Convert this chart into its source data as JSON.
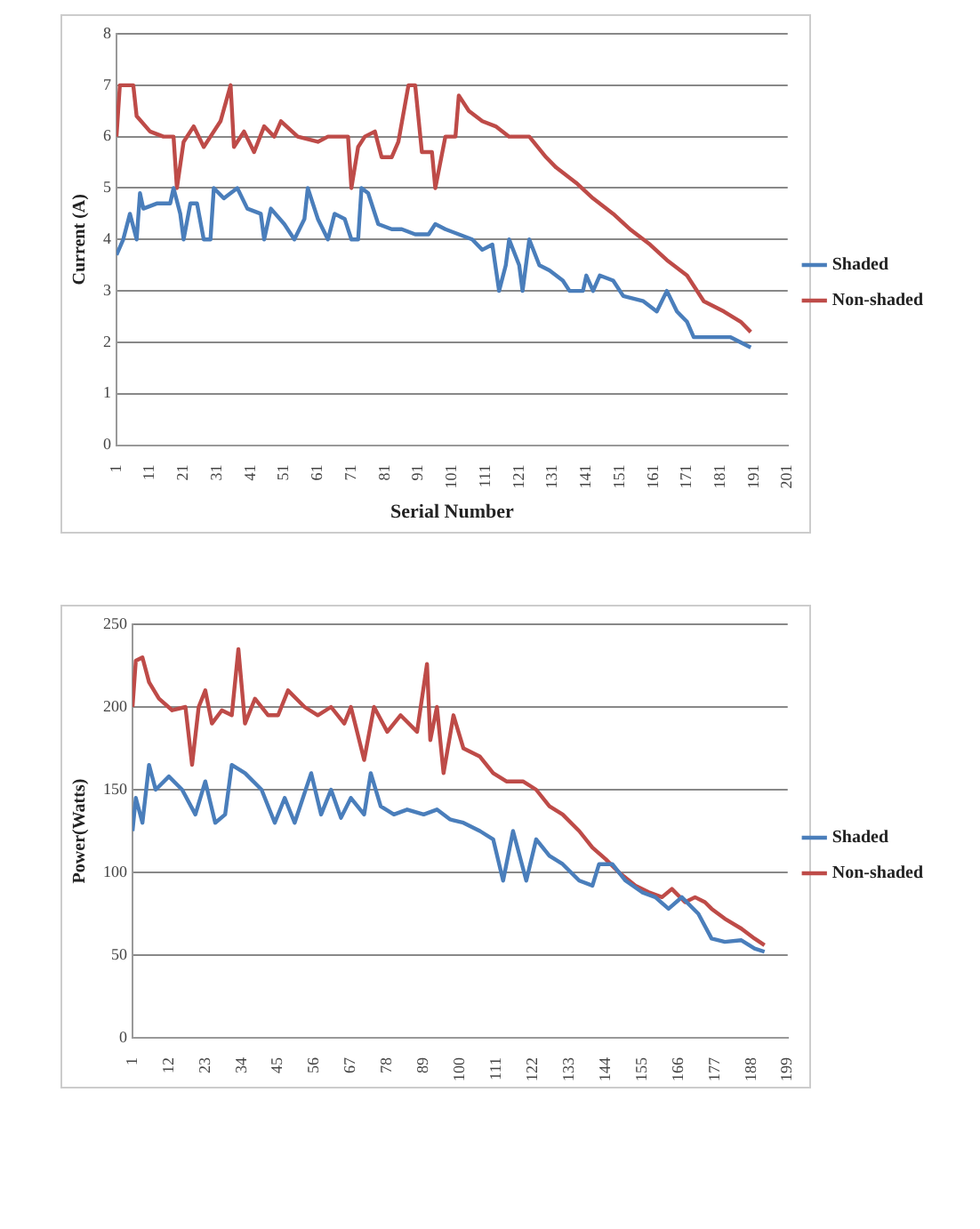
{
  "chart_data": [
    {
      "type": "line",
      "xlabel": "Serial Number",
      "ylabel": "Current (A)",
      "xlim": [
        1,
        201
      ],
      "xticks": [
        1,
        11,
        21,
        31,
        41,
        51,
        61,
        71,
        81,
        91,
        101,
        111,
        121,
        131,
        141,
        151,
        161,
        171,
        181,
        191,
        201
      ],
      "ylim": [
        0,
        8
      ],
      "yticks": [
        0,
        1,
        2,
        3,
        4,
        5,
        6,
        7,
        8
      ],
      "grid": "y",
      "legend": "right",
      "marker": "none",
      "series": [
        {
          "name": "Shaded",
          "color": "#4a7ebb",
          "x": [
            1,
            3,
            5,
            7,
            8,
            9,
            13,
            17,
            18,
            20,
            21,
            23,
            25,
            27,
            29,
            30,
            33,
            37,
            40,
            44,
            45,
            47,
            51,
            54,
            57,
            58,
            61,
            64,
            66,
            69,
            71,
            73,
            74,
            76,
            79,
            83,
            86,
            90,
            94,
            96,
            99,
            103,
            107,
            110,
            113,
            115,
            117,
            118,
            121,
            122,
            124,
            127,
            130,
            134,
            136,
            140,
            141,
            143,
            145,
            149,
            152,
            158,
            162,
            165,
            168,
            171,
            173,
            178,
            184,
            187,
            190
          ],
          "values": [
            3.7,
            4.0,
            4.5,
            4.0,
            4.9,
            4.6,
            4.7,
            4.7,
            5.0,
            4.5,
            4.0,
            4.7,
            4.7,
            4.0,
            4.0,
            5.0,
            4.8,
            5.0,
            4.6,
            4.5,
            4.0,
            4.6,
            4.3,
            4.0,
            4.4,
            5.0,
            4.4,
            4.0,
            4.5,
            4.4,
            4.0,
            4.0,
            5.0,
            4.9,
            4.3,
            4.2,
            4.2,
            4.1,
            4.1,
            4.3,
            4.2,
            4.1,
            4.0,
            3.8,
            3.9,
            3.0,
            3.5,
            4.0,
            3.5,
            3.0,
            4.0,
            3.5,
            3.4,
            3.2,
            3.0,
            3.0,
            3.3,
            3.0,
            3.3,
            3.2,
            2.9,
            2.8,
            2.6,
            3.0,
            2.6,
            2.4,
            2.1,
            2.1,
            2.1,
            2.0,
            1.9
          ]
        },
        {
          "name": "Non-shaded",
          "color": "#be4b48",
          "x": [
            1,
            2,
            6,
            7,
            11,
            15,
            18,
            19,
            21,
            24,
            27,
            29,
            32,
            35,
            36,
            39,
            42,
            45,
            48,
            50,
            55,
            61,
            64,
            70,
            71,
            73,
            75,
            78,
            80,
            83,
            85,
            88,
            90,
            92,
            95,
            96,
            99,
            102,
            103,
            106,
            110,
            114,
            118,
            124,
            129,
            132,
            138,
            143,
            149,
            154,
            160,
            165,
            171,
            176,
            182,
            187,
            190
          ],
          "values": [
            6.0,
            7.0,
            7.0,
            6.4,
            6.1,
            6.0,
            6.0,
            5.0,
            5.9,
            6.2,
            5.8,
            6.0,
            6.3,
            7.0,
            5.8,
            6.1,
            5.7,
            6.2,
            6.0,
            6.3,
            6.0,
            5.9,
            6.0,
            6.0,
            5.0,
            5.8,
            6.0,
            6.1,
            5.6,
            5.6,
            5.9,
            7.0,
            7.0,
            5.7,
            5.7,
            5.0,
            6.0,
            6.0,
            6.8,
            6.5,
            6.3,
            6.2,
            6.0,
            6.0,
            5.6,
            5.4,
            5.1,
            4.8,
            4.5,
            4.2,
            3.9,
            3.6,
            3.3,
            2.8,
            2.6,
            2.4,
            2.2
          ]
        }
      ]
    },
    {
      "type": "line",
      "ylabel": "Power(Watts)",
      "xlim": [
        1,
        199
      ],
      "xticks": [
        1,
        12,
        23,
        34,
        45,
        56,
        67,
        78,
        89,
        100,
        111,
        122,
        133,
        144,
        155,
        166,
        177,
        188,
        199
      ],
      "ylim": [
        0,
        250
      ],
      "yticks": [
        0,
        50,
        100,
        150,
        200,
        250
      ],
      "grid": "y",
      "legend": "right",
      "marker": "none",
      "series": [
        {
          "name": "Shaded",
          "color": "#4a7ebb",
          "x": [
            1,
            2,
            4,
            6,
            8,
            12,
            16,
            20,
            23,
            26,
            29,
            31,
            35,
            40,
            44,
            47,
            50,
            55,
            58,
            61,
            64,
            67,
            71,
            73,
            76,
            80,
            84,
            89,
            93,
            97,
            101,
            106,
            110,
            113,
            116,
            120,
            123,
            127,
            131,
            136,
            140,
            142,
            146,
            150,
            155,
            159,
            163,
            167,
            172,
            176,
            180,
            185,
            189,
            192
          ],
          "values": [
            125,
            145,
            130,
            165,
            150,
            158,
            150,
            135,
            155,
            130,
            135,
            165,
            160,
            150,
            130,
            145,
            130,
            160,
            135,
            150,
            133,
            145,
            135,
            160,
            140,
            135,
            138,
            135,
            138,
            132,
            130,
            125,
            120,
            95,
            125,
            95,
            120,
            110,
            105,
            95,
            92,
            105,
            105,
            95,
            88,
            85,
            78,
            85,
            75,
            60,
            58,
            59,
            54,
            52
          ]
        },
        {
          "name": "Non-shaded",
          "color": "#be4b48",
          "x": [
            1,
            2,
            4,
            6,
            9,
            13,
            17,
            19,
            21,
            23,
            25,
            28,
            31,
            33,
            35,
            38,
            42,
            45,
            48,
            53,
            57,
            61,
            65,
            67,
            71,
            74,
            78,
            82,
            87,
            90,
            91,
            93,
            95,
            98,
            101,
            106,
            110,
            114,
            119,
            123,
            127,
            131,
            136,
            140,
            144,
            148,
            153,
            157,
            161,
            164,
            168,
            171,
            174,
            176,
            180,
            185,
            189,
            192
          ],
          "values": [
            200,
            228,
            230,
            215,
            205,
            198,
            200,
            165,
            200,
            210,
            190,
            198,
            195,
            235,
            190,
            205,
            195,
            195,
            210,
            200,
            195,
            200,
            190,
            200,
            168,
            200,
            185,
            195,
            185,
            226,
            180,
            200,
            160,
            195,
            175,
            170,
            160,
            155,
            155,
            150,
            140,
            135,
            125,
            115,
            108,
            100,
            92,
            88,
            85,
            90,
            82,
            85,
            82,
            78,
            72,
            66,
            60,
            56
          ]
        }
      ]
    }
  ]
}
